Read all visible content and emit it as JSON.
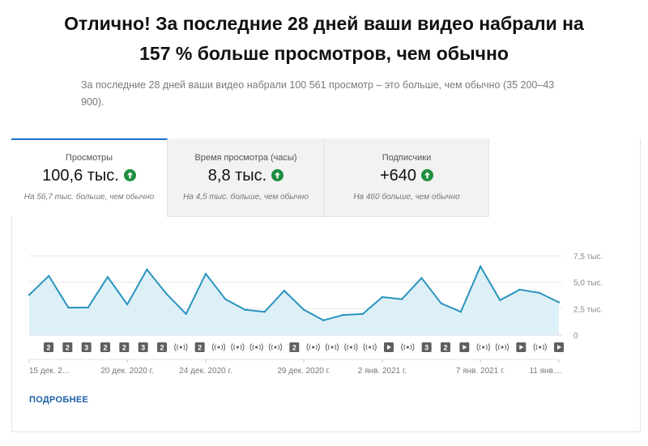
{
  "headline": {
    "line1": "Отлично! За последние 28 дней ваши видео набрали на",
    "line2": "157 % больше просмотров, чем обычно"
  },
  "subtext": "За последние 28 дней ваши видео набрали 100 561 просмотр – это больше, чем обычно (35 200–43 900).",
  "tabs": [
    {
      "label": "Просмотры",
      "value": "100,6 тыс.",
      "note": "На 56,7 тыс. больше, чем обычно",
      "active": true,
      "icon": "arrow-up-icon"
    },
    {
      "label": "Время просмотра (часы)",
      "value": "8,8 тыс.",
      "note": "На 4,5 тыс. больше, чем обычно",
      "active": false,
      "icon": "arrow-up-icon"
    },
    {
      "label": "Подписчики",
      "value": "+640",
      "note": "На 460 больше, чем обычно",
      "active": false,
      "icon": "arrow-up-icon"
    }
  ],
  "more_link": "ПОДРОБНЕЕ",
  "colors": {
    "accent": "#1a73c4",
    "line": "#2a93bf",
    "fill": "#ddf0f7",
    "up": "#1e8e3e"
  },
  "chart_data": {
    "type": "area",
    "x": [
      "15 дек. 2020",
      "16 дек. 2020",
      "17 дек. 2020",
      "18 дек. 2020",
      "19 дек. 2020",
      "20 дек. 2020",
      "21 дек. 2020",
      "22 дек. 2020",
      "23 дек. 2020",
      "24 дек. 2020",
      "25 дек. 2020",
      "26 дек. 2020",
      "27 дек. 2020",
      "28 дек. 2020",
      "29 дек. 2020",
      "30 дек. 2020",
      "31 дек. 2020",
      "1 янв. 2021",
      "2 янв. 2021",
      "3 янв. 2021",
      "4 янв. 2021",
      "5 янв. 2021",
      "6 янв. 2021",
      "7 янв. 2021",
      "8 янв. 2021",
      "9 янв. 2021",
      "10 янв. 2021",
      "11 янв. 2021"
    ],
    "series": [
      {
        "values": [
          3800,
          5600,
          2600,
          2600,
          5500,
          2900,
          6200,
          3900,
          2000,
          5800,
          3400,
          2400,
          2200,
          4200,
          2400,
          1400,
          1900,
          2000,
          3600,
          3400,
          5400,
          3000,
          2200,
          6500,
          3300,
          4300,
          4000,
          3100
        ]
      }
    ],
    "y_ticks": [
      "0",
      "2,5 тыс.",
      "5,0 тыс.",
      "7,5 тыс."
    ],
    "y_tick_values": [
      0,
      2500,
      5000,
      7500
    ],
    "ylim": [
      0,
      7500
    ],
    "grid": true,
    "x_tick_labels": [
      {
        "index": 0,
        "label": "15 дек. 2..."
      },
      {
        "index": 5,
        "label": "20 дек. 2020 г."
      },
      {
        "index": 9,
        "label": "24 дек. 2020 г."
      },
      {
        "index": 14,
        "label": "29 дек. 2020 г."
      },
      {
        "index": 18,
        "label": "2 янв. 2021 г."
      },
      {
        "index": 23,
        "label": "7 янв. 2021 г."
      },
      {
        "index": 27,
        "label": "11 янв...."
      }
    ],
    "markers": [
      {
        "type": "count",
        "label": "2"
      },
      {
        "type": "count",
        "label": "2"
      },
      {
        "type": "count",
        "label": "3"
      },
      {
        "type": "count",
        "label": "2"
      },
      {
        "type": "count",
        "label": "2"
      },
      {
        "type": "count",
        "label": "3"
      },
      {
        "type": "count",
        "label": "2"
      },
      {
        "type": "live",
        "label": ""
      },
      {
        "type": "count",
        "label": "2"
      },
      {
        "type": "live",
        "label": ""
      },
      {
        "type": "live",
        "label": ""
      },
      {
        "type": "live",
        "label": ""
      },
      {
        "type": "live",
        "label": ""
      },
      {
        "type": "count",
        "label": "2"
      },
      {
        "type": "live",
        "label": ""
      },
      {
        "type": "live",
        "label": ""
      },
      {
        "type": "live",
        "label": ""
      },
      {
        "type": "live",
        "label": ""
      },
      {
        "type": "play",
        "label": ""
      },
      {
        "type": "live",
        "label": ""
      },
      {
        "type": "count",
        "label": "3"
      },
      {
        "type": "count",
        "label": "2"
      },
      {
        "type": "play",
        "label": ""
      },
      {
        "type": "live",
        "label": ""
      },
      {
        "type": "live",
        "label": ""
      },
      {
        "type": "play",
        "label": ""
      },
      {
        "type": "live",
        "label": ""
      },
      {
        "type": "play",
        "label": ""
      }
    ]
  }
}
